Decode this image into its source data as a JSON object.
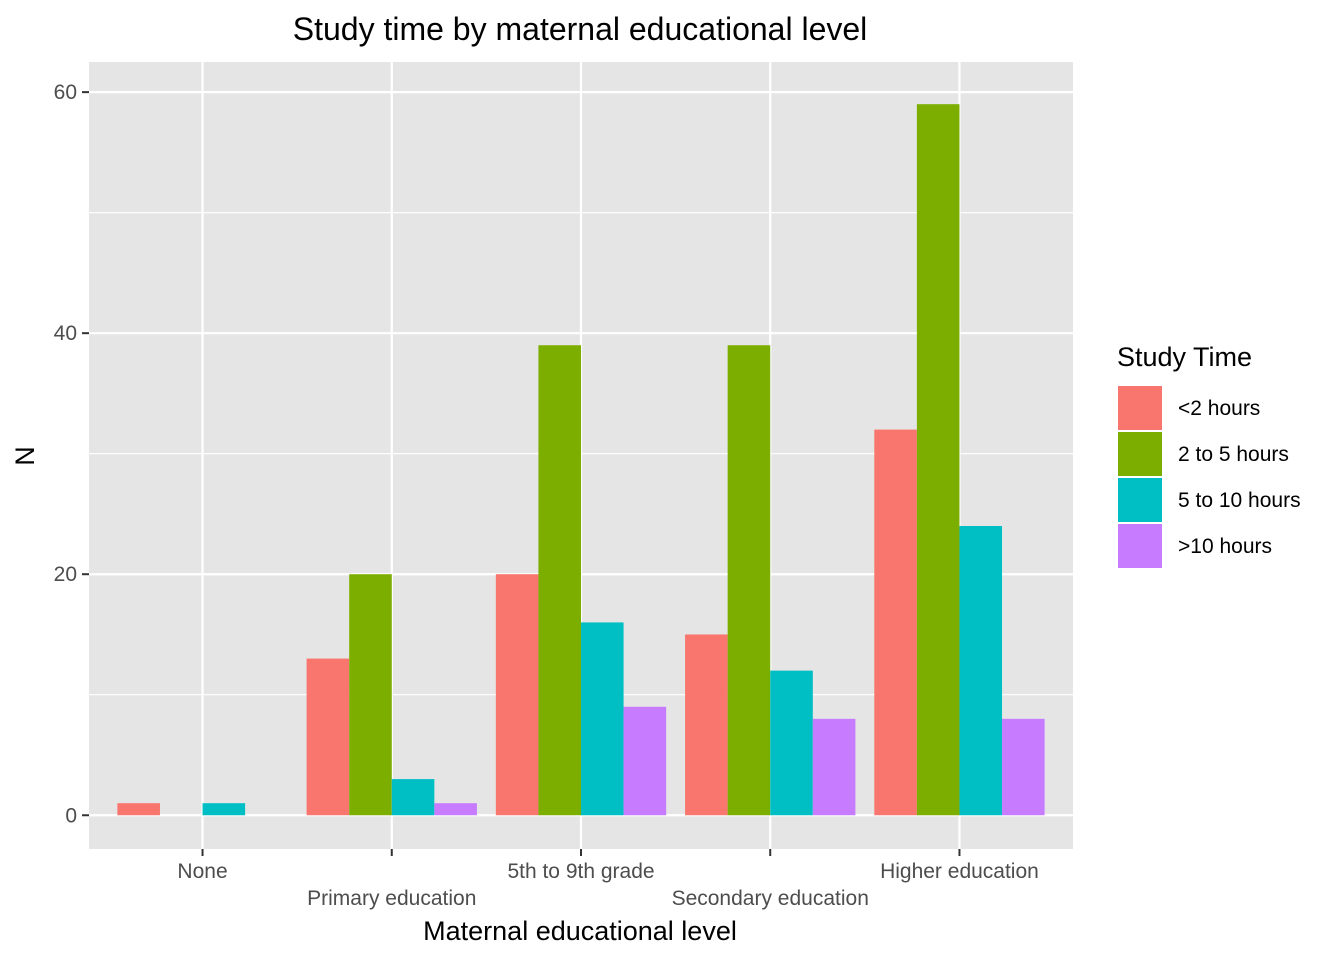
{
  "chart_data": {
    "type": "bar",
    "title": "Study time by maternal educational level",
    "xlabel": "Maternal educational level",
    "ylabel": "N",
    "categories": [
      "None",
      "Primary education",
      "5th to 9th grade",
      "Secondary education",
      "Higher education"
    ],
    "ylim": [
      -2.8,
      62.5
    ],
    "yticks": [
      0,
      20,
      40,
      60
    ],
    "grid": true,
    "legend_title": "Study Time",
    "legend_position": "right",
    "series": [
      {
        "name": "<2 hours",
        "color": "#F8766D",
        "values": [
          1,
          13,
          20,
          15,
          32
        ]
      },
      {
        "name": "2 to 5 hours",
        "color": "#7CAE00",
        "values": [
          0,
          20,
          39,
          39,
          59
        ]
      },
      {
        "name": "5 to 10 hours",
        "color": "#00BFC4",
        "values": [
          1,
          3,
          16,
          12,
          24
        ]
      },
      {
        "name": ">10 hours",
        "color": "#C77CFF",
        "values": [
          0,
          1,
          9,
          8,
          8
        ]
      }
    ]
  },
  "colors": {
    "panel_background": "#E5E5E5",
    "grid_major": "#FFFFFF"
  }
}
